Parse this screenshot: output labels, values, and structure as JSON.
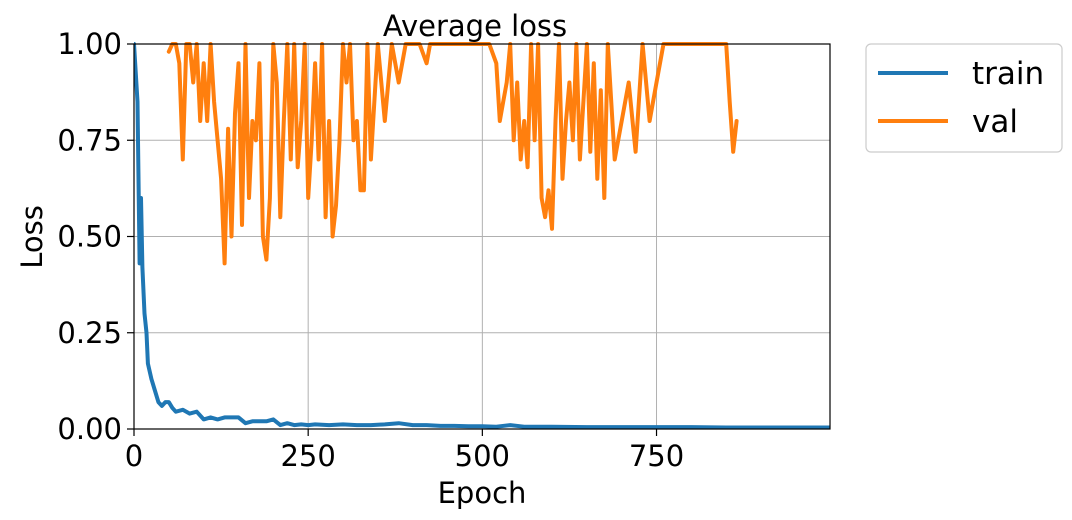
{
  "chart_data": {
    "type": "line",
    "title": "Average loss",
    "xlabel": "Epoch",
    "ylabel": "Loss",
    "xlim": [
      0,
      999
    ],
    "ylim": [
      0,
      1.0
    ],
    "x_ticks": [
      0,
      250,
      500,
      750
    ],
    "x_tick_labels": [
      "0",
      "250",
      "500",
      "750"
    ],
    "y_ticks": [
      0,
      0.25,
      0.5,
      0.75,
      1.0
    ],
    "y_tick_labels": [
      "0.00",
      "0.25",
      "0.50",
      "0.75",
      "1.00"
    ],
    "grid": true,
    "legend_position": "outside-top-right",
    "series": [
      {
        "name": "train",
        "color": "#1f77b4",
        "x": [
          0,
          5,
          8,
          10,
          12,
          15,
          18,
          20,
          25,
          30,
          35,
          40,
          45,
          50,
          55,
          60,
          70,
          80,
          90,
          100,
          110,
          120,
          130,
          140,
          150,
          160,
          170,
          180,
          190,
          200,
          210,
          220,
          230,
          240,
          250,
          260,
          280,
          300,
          320,
          340,
          360,
          380,
          400,
          420,
          440,
          460,
          480,
          500,
          520,
          540,
          560,
          600,
          650,
          700,
          750,
          800,
          850,
          900,
          950,
          999
        ],
        "y": [
          1.0,
          0.85,
          0.43,
          0.6,
          0.42,
          0.3,
          0.25,
          0.17,
          0.13,
          0.1,
          0.07,
          0.06,
          0.07,
          0.07,
          0.055,
          0.045,
          0.05,
          0.04,
          0.045,
          0.025,
          0.03,
          0.025,
          0.03,
          0.03,
          0.03,
          0.015,
          0.02,
          0.02,
          0.02,
          0.025,
          0.01,
          0.015,
          0.01,
          0.012,
          0.01,
          0.012,
          0.01,
          0.012,
          0.01,
          0.01,
          0.012,
          0.015,
          0.01,
          0.01,
          0.008,
          0.008,
          0.007,
          0.007,
          0.006,
          0.01,
          0.006,
          0.006,
          0.005,
          0.005,
          0.005,
          0.005,
          0.004,
          0.004,
          0.004,
          0.004
        ]
      },
      {
        "name": "val",
        "color": "#ff7f0e",
        "x": [
          50,
          55,
          60,
          65,
          70,
          75,
          80,
          85,
          90,
          95,
          100,
          105,
          110,
          115,
          120,
          125,
          130,
          135,
          140,
          145,
          150,
          155,
          160,
          165,
          170,
          175,
          180,
          185,
          190,
          195,
          200,
          205,
          210,
          215,
          220,
          225,
          230,
          235,
          240,
          245,
          250,
          255,
          260,
          265,
          270,
          275,
          280,
          285,
          290,
          295,
          300,
          305,
          310,
          315,
          320,
          325,
          330,
          335,
          340,
          350,
          360,
          370,
          380,
          390,
          400,
          410,
          420,
          425,
          430,
          440,
          450,
          460,
          470,
          480,
          490,
          500,
          510,
          520,
          525,
          530,
          535,
          540,
          545,
          550,
          555,
          560,
          565,
          570,
          575,
          580,
          585,
          590,
          595,
          600,
          605,
          610,
          615,
          620,
          625,
          630,
          635,
          640,
          645,
          650,
          655,
          660,
          665,
          670,
          675,
          680,
          690,
          700,
          710,
          720,
          730,
          740,
          750,
          760,
          770,
          780,
          790,
          800,
          810,
          820,
          830,
          840,
          850,
          855,
          860,
          865
        ],
        "y": [
          0.98,
          1.0,
          1.0,
          0.95,
          0.7,
          1.0,
          1.0,
          0.9,
          1.0,
          0.8,
          0.95,
          0.8,
          1.0,
          0.85,
          0.75,
          0.65,
          0.43,
          0.78,
          0.5,
          0.82,
          0.95,
          0.53,
          1.0,
          0.6,
          0.8,
          0.75,
          0.95,
          0.5,
          0.44,
          0.6,
          1.0,
          0.9,
          0.55,
          0.8,
          1.0,
          0.7,
          1.0,
          0.68,
          0.8,
          1.0,
          0.6,
          0.75,
          0.95,
          0.7,
          1.0,
          0.55,
          0.8,
          0.5,
          0.58,
          0.75,
          1.0,
          0.9,
          1.0,
          0.75,
          0.8,
          0.62,
          0.62,
          1.0,
          0.7,
          1.0,
          0.8,
          1.0,
          0.9,
          1.0,
          1.0,
          1.0,
          0.95,
          1.0,
          1.0,
          1.0,
          1.0,
          1.0,
          1.0,
          1.0,
          1.0,
          1.0,
          1.0,
          0.95,
          0.8,
          0.85,
          0.9,
          1.0,
          0.75,
          0.9,
          0.7,
          0.8,
          0.68,
          1.0,
          0.75,
          1.0,
          0.6,
          0.55,
          0.62,
          0.52,
          0.8,
          1.0,
          0.65,
          0.8,
          0.9,
          0.75,
          1.0,
          0.7,
          0.85,
          1.0,
          0.72,
          0.95,
          0.65,
          0.88,
          0.6,
          1.0,
          0.7,
          0.8,
          0.9,
          0.72,
          1.0,
          0.8,
          0.9,
          1.0,
          1.0,
          1.0,
          1.0,
          1.0,
          1.0,
          1.0,
          1.0,
          1.0,
          1.0,
          0.85,
          0.72,
          0.8
        ]
      }
    ]
  }
}
